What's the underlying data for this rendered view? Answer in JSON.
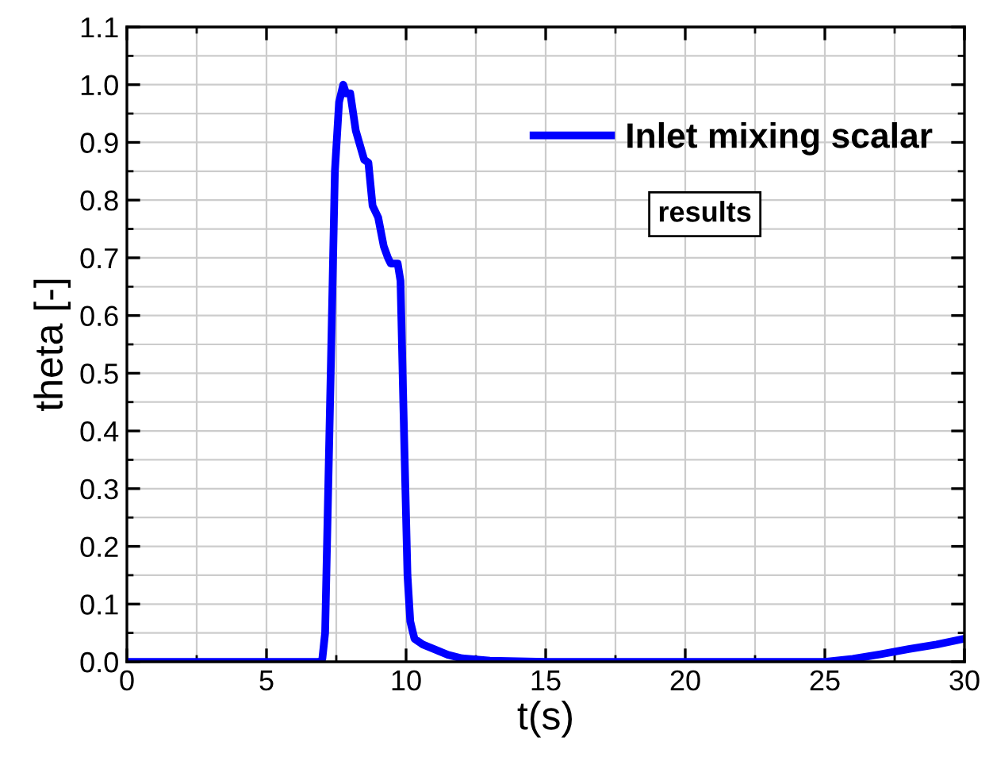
{
  "chart_data": {
    "type": "line",
    "xlabel": "t(s)",
    "ylabel": "theta [-]",
    "series": [
      {
        "name": "Inlet mixing scalar",
        "color": "#0000ff",
        "x": [
          0,
          6.9,
          7.0,
          7.1,
          7.3,
          7.45,
          7.6,
          7.75,
          7.85,
          8.0,
          8.2,
          8.5,
          8.65,
          8.8,
          9.0,
          9.2,
          9.35,
          9.45,
          9.7,
          9.8,
          9.9,
          10.05,
          10.15,
          10.3,
          10.6,
          11,
          11.5,
          12,
          13,
          15,
          25,
          26,
          27,
          28,
          29,
          30
        ],
        "values": [
          0,
          0,
          0.005,
          0.05,
          0.5,
          0.85,
          0.97,
          1.0,
          0.985,
          0.985,
          0.92,
          0.87,
          0.865,
          0.79,
          0.77,
          0.72,
          0.7,
          0.69,
          0.69,
          0.66,
          0.45,
          0.15,
          0.07,
          0.04,
          0.03,
          0.022,
          0.012,
          0.006,
          0.002,
          0,
          0,
          0.005,
          0.013,
          0.022,
          0.03,
          0.04
        ]
      }
    ],
    "xlim": [
      0,
      30
    ],
    "xticks": [
      0,
      5,
      10,
      15,
      20,
      25,
      30
    ],
    "ylim": [
      0,
      1.1
    ],
    "yticks": [
      {
        "value": 0,
        "label": "0.0"
      },
      {
        "value": 0.1,
        "label": "0.1"
      },
      {
        "value": 0.2,
        "label": "0.2"
      },
      {
        "value": 0.3,
        "label": "0.3"
      },
      {
        "value": 0.4,
        "label": "0.4"
      },
      {
        "value": 0.5,
        "label": "0.5"
      },
      {
        "value": 0.6,
        "label": "0.6"
      },
      {
        "value": 0.7,
        "label": "0.7"
      },
      {
        "value": 0.8,
        "label": "0.8"
      },
      {
        "value": 0.9,
        "label": "0.9"
      },
      {
        "value": 1.0,
        "label": "1.0"
      },
      {
        "value": 1.1,
        "label": "1.1"
      }
    ],
    "grid": true,
    "legend": "top right",
    "line_style": "solid",
    "marker": "none",
    "annotations": [
      "results"
    ]
  }
}
